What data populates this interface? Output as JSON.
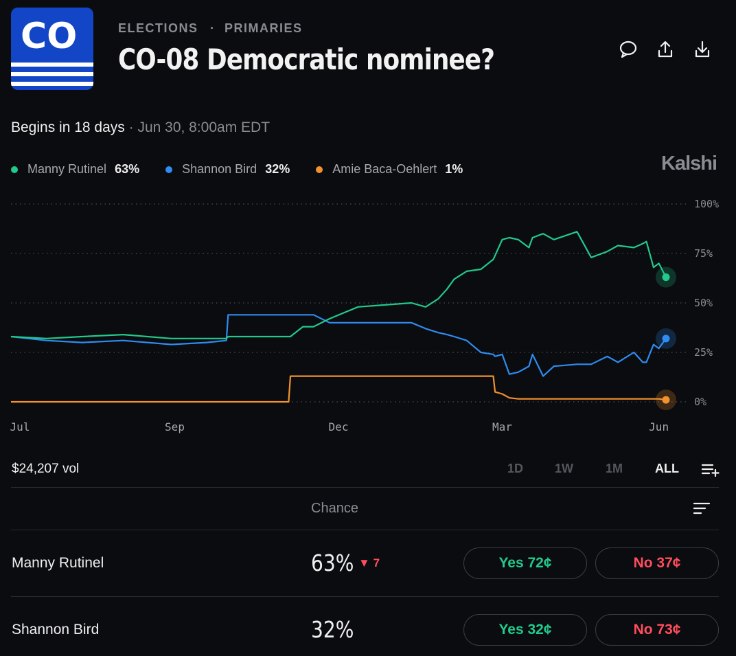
{
  "header": {
    "badge": "CO",
    "breadcrumb": [
      "ELECTIONS",
      "PRIMARIES"
    ],
    "title": "CO-08 Democratic nominee?"
  },
  "status": {
    "begins": "Begins in 18 days",
    "date": "Jun 30, 8:00am EDT"
  },
  "brand": "Kalshi",
  "chart_data": {
    "type": "line",
    "x": [
      0,
      20,
      40,
      63,
      90,
      110,
      121,
      122,
      150,
      156,
      157,
      164,
      170,
      179,
      195,
      210,
      225,
      233,
      240,
      245,
      249,
      256,
      264,
      271,
      272,
      276,
      280,
      285,
      291,
      293,
      299,
      305,
      318,
      326,
      335,
      341,
      350,
      355,
      357,
      361,
      364,
      368
    ],
    "series": [
      {
        "name": "Manny Rutinel",
        "legend_value": "63%",
        "color": "#22c98c",
        "values": [
          33,
          32,
          33,
          34,
          32,
          32,
          32,
          33,
          33,
          33,
          33,
          38,
          38,
          42,
          48,
          49,
          50,
          48,
          52,
          57,
          62,
          66,
          67,
          72,
          74,
          82,
          83,
          82,
          78,
          83,
          85,
          82,
          86,
          73,
          76,
          79,
          78,
          80,
          81,
          68,
          70,
          63
        ]
      },
      {
        "name": "Shannon Bird",
        "legend_value": "32%",
        "color": "#2f8cf2",
        "values": [
          33,
          31,
          30,
          31,
          29,
          30,
          31,
          44,
          44,
          44,
          44,
          44,
          44,
          40,
          40,
          40,
          40,
          37,
          35,
          34,
          33,
          31,
          25,
          24,
          23,
          24,
          14,
          15,
          18,
          24,
          13,
          18,
          19,
          19,
          23,
          20,
          25,
          20,
          20,
          29,
          27,
          32
        ]
      },
      {
        "name": "Amie Baca-Oehlert",
        "legend_value": "1%",
        "color": "#f2922e",
        "values": [
          0,
          0,
          0,
          0,
          0,
          0,
          0,
          0,
          0,
          0,
          13,
          13,
          13,
          13,
          13,
          13,
          13,
          13,
          13,
          13,
          13,
          13,
          13,
          13,
          5,
          4,
          2,
          1.5,
          1.5,
          1.5,
          1.5,
          1.5,
          1.5,
          1.5,
          1.5,
          1.5,
          1.5,
          1.5,
          1.5,
          1.5,
          1.5,
          1
        ]
      }
    ],
    "xlim": [
      0,
      368
    ],
    "xticks": [
      {
        "value": 5,
        "label": "Jul"
      },
      {
        "value": 92,
        "label": "Sep"
      },
      {
        "value": 184,
        "label": "Dec"
      },
      {
        "value": 276,
        "label": "Mar"
      },
      {
        "value": 364,
        "label": "Jun"
      }
    ],
    "ylim": [
      0,
      100
    ],
    "yticks": [
      {
        "value": 0,
        "label": "0%"
      },
      {
        "value": 25,
        "label": "25%"
      },
      {
        "value": 50,
        "label": "50%"
      },
      {
        "value": 75,
        "label": "75%"
      },
      {
        "value": 100,
        "label": "100%"
      }
    ],
    "grid": true
  },
  "volume": "$24,207 vol",
  "ranges": [
    "1D",
    "1W",
    "1M",
    "ALL"
  ],
  "table": {
    "header": "Chance",
    "rows": [
      {
        "name": "Manny Rutinel",
        "chance": "63%",
        "change": "7",
        "yes": "Yes 72¢",
        "no": "No 37¢"
      },
      {
        "name": "Shannon Bird",
        "chance": "32%",
        "yes": "Yes 32¢",
        "no": "No 73¢"
      }
    ]
  }
}
